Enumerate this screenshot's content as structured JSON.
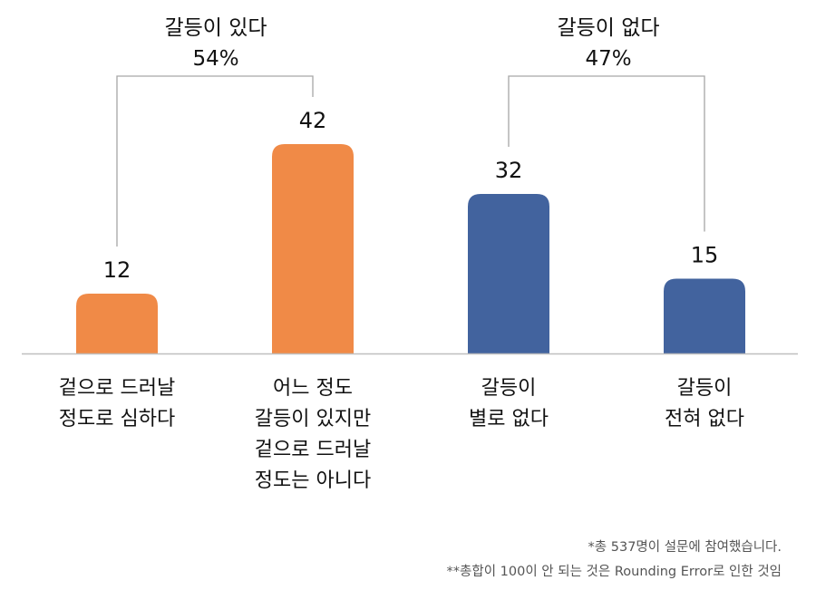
{
  "chart_data": {
    "type": "bar",
    "categories": [
      "겉으로 드러날\n정도로 심하다",
      "어느 정도\n갈등이 있지만\n겉으로 드러날\n정도는 아니다",
      "갈등이\n별로 없다",
      "갈등이\n전혀 없다"
    ],
    "values": [
      12,
      42,
      32,
      15
    ],
    "data_labels": [
      "12",
      "42",
      "32",
      "15"
    ],
    "bar_colors": [
      "#F08A47",
      "#F08A47",
      "#42639E",
      "#42639E"
    ],
    "groups": [
      {
        "title": "갈등이 있다",
        "percent": "54%",
        "bars": [
          0,
          1
        ]
      },
      {
        "title": "갈등이 없다",
        "percent": "47%",
        "bars": [
          2,
          3
        ]
      }
    ],
    "title": "",
    "xlabel": "",
    "ylabel": "",
    "ylim": [
      0,
      50
    ],
    "grid": false,
    "legend": "none"
  },
  "footnotes": [
    "*총 537명이 설문에 참여했습니다.",
    "**총합이 100이 안 되는 것은 Rounding Error로 인한 것임"
  ],
  "colors": {
    "orange": "#F08A47",
    "blue": "#42639E",
    "axis": "#BFBFBF",
    "bracket": "#A6A6A6"
  }
}
